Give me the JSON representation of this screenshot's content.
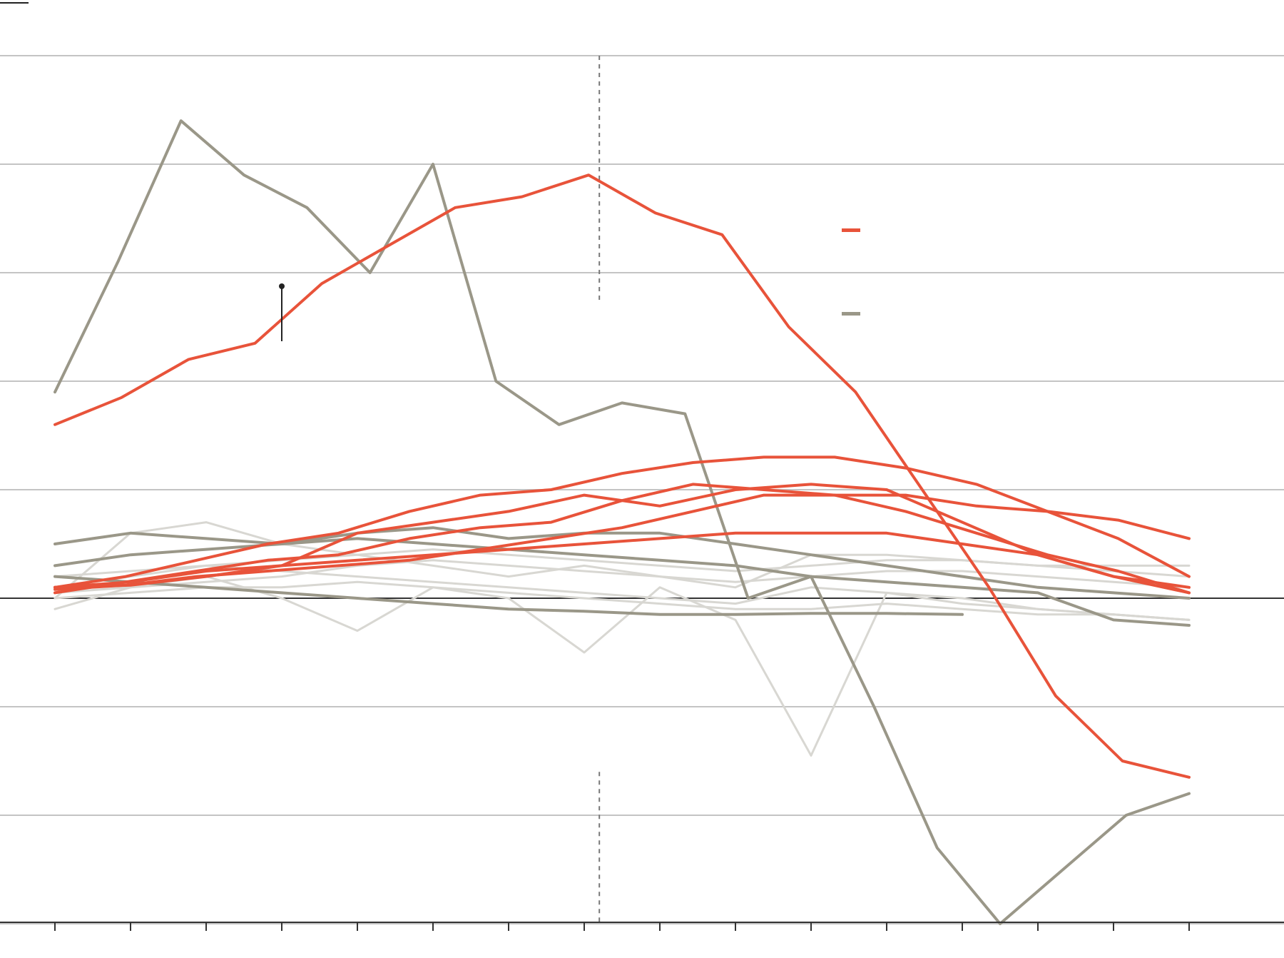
{
  "colors": {
    "accent": "#e8533a",
    "highlight_gray": "#9a9788",
    "background_gray": "#d8d7d2",
    "grid": "#c4c4c4",
    "axis": "#333333"
  },
  "chart_data": {
    "type": "line",
    "title": "",
    "xlabel": "",
    "ylabel": "",
    "x_count": 16,
    "ylim": [
      -4.5,
      5.5
    ],
    "gridlines": [
      -3,
      -2,
      -1,
      0,
      1,
      2,
      3,
      4,
      5
    ],
    "divider_x": 7.2,
    "legend": [
      {
        "name": "",
        "color": "#e8533a"
      },
      {
        "name": "",
        "color": "#9a9788"
      }
    ],
    "series": [
      {
        "group": "red",
        "values": [
          1.6,
          1.85,
          2.2,
          2.35,
          2.9,
          3.25,
          3.6,
          3.7,
          3.9,
          3.55,
          3.35,
          2.5,
          1.9,
          1.0,
          0.1,
          -0.9,
          -1.5,
          -1.65
        ]
      },
      {
        "group": "red",
        "values": [
          0.1,
          0.2,
          0.35,
          0.5,
          0.6,
          0.8,
          0.95,
          1.0,
          1.15,
          1.25,
          1.3,
          1.3,
          1.2,
          1.05,
          0.8,
          0.55,
          0.2
        ]
      },
      {
        "group": "red",
        "values": [
          0.05,
          0.15,
          0.25,
          0.35,
          0.4,
          0.55,
          0.65,
          0.7,
          0.9,
          1.05,
          1.0,
          0.95,
          0.8,
          0.6,
          0.4,
          0.25,
          0.05
        ]
      },
      {
        "group": "red",
        "values": [
          0.08,
          0.12,
          0.2,
          0.25,
          0.3,
          0.35,
          0.45,
          0.55,
          0.65,
          0.8,
          0.95,
          0.95,
          0.95,
          0.85,
          0.8,
          0.72,
          0.55
        ]
      },
      {
        "group": "red",
        "values": [
          0.1,
          0.12,
          0.2,
          0.3,
          0.6,
          0.7,
          0.8,
          0.95,
          0.85,
          1.0,
          1.05,
          1.0,
          0.7,
          0.4,
          0.2,
          0.1
        ]
      },
      {
        "group": "red",
        "values": [
          0.1,
          0.15,
          0.25,
          0.3,
          0.35,
          0.4,
          0.45,
          0.5,
          0.55,
          0.6,
          0.6,
          0.6,
          0.5,
          0.4,
          0.2,
          0.05
        ]
      },
      {
        "group": "gray",
        "values": [
          1.9,
          3.1,
          4.4,
          3.9,
          3.6,
          3.0,
          4.0,
          2.0,
          1.6,
          1.8,
          1.7,
          0.0,
          0.2,
          -1.0,
          -2.3,
          -3.0,
          -2.5,
          -2.0,
          -1.8
        ]
      },
      {
        "group": "gray",
        "values": [
          0.5,
          0.6,
          0.55,
          0.5,
          0.6,
          0.65,
          0.55,
          0.6,
          0.6,
          0.5,
          0.4,
          0.3,
          0.2,
          0.1,
          0.05,
          0.0
        ]
      },
      {
        "group": "gray",
        "values": [
          0.3,
          0.4,
          0.45,
          0.5,
          0.55,
          0.5,
          0.45,
          0.4,
          0.35,
          0.3,
          0.2,
          0.15,
          0.1,
          0.05,
          -0.2,
          -0.25
        ]
      },
      {
        "group": "gray",
        "values": [
          0.2,
          0.15,
          0.1,
          0.05,
          0.0,
          -0.05,
          -0.1,
          -0.12,
          -0.15,
          -0.15,
          -0.14,
          -0.14,
          -0.15
        ]
      },
      {
        "group": "light",
        "values": [
          0.0,
          0.6,
          0.7,
          0.5,
          0.4,
          0.3,
          0.2,
          0.3,
          0.2,
          0.1,
          0.4,
          0.4,
          0.35,
          0.3,
          0.3,
          0.3
        ]
      },
      {
        "group": "light",
        "values": [
          -0.1,
          0.1,
          0.2,
          0.0,
          -0.3,
          0.1,
          0.0,
          -0.5,
          0.1,
          -0.2,
          -1.45,
          0.05,
          0.0,
          -0.1,
          -0.15,
          -0.2
        ]
      },
      {
        "group": "light",
        "values": [
          0.1,
          0.2,
          0.3,
          0.25,
          0.2,
          0.15,
          0.1,
          0.05,
          0.0,
          -0.05,
          0.1,
          0.05,
          -0.05,
          -0.1,
          -0.15,
          -0.2
        ]
      },
      {
        "group": "light",
        "values": [
          0.2,
          0.25,
          0.3,
          0.35,
          0.4,
          0.45,
          0.4,
          0.35,
          0.3,
          0.25,
          0.3,
          0.35,
          0.35,
          0.3,
          0.25,
          0.2
        ]
      },
      {
        "group": "light",
        "values": [
          0.05,
          0.1,
          0.15,
          0.2,
          0.3,
          0.35,
          0.3,
          0.25,
          0.2,
          0.15,
          0.2,
          0.25,
          0.25,
          0.2,
          0.15,
          0.1
        ]
      },
      {
        "group": "light",
        "values": [
          0.0,
          0.05,
          0.1,
          0.1,
          0.15,
          0.1,
          0.05,
          0.0,
          -0.05,
          -0.1,
          -0.1,
          -0.05,
          -0.1,
          -0.15,
          -0.15,
          -0.2
        ]
      }
    ]
  }
}
